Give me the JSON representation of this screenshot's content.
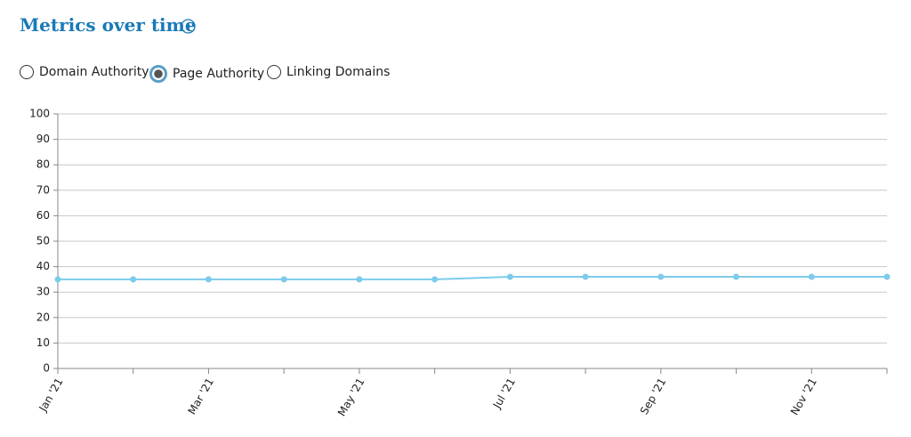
{
  "header": {
    "title": "Metrics over time"
  },
  "options": [
    {
      "label": "Domain Authority",
      "selected": false
    },
    {
      "label": "Page Authority",
      "selected": true
    },
    {
      "label": "Linking Domains",
      "selected": false
    }
  ],
  "chart_data": {
    "type": "line",
    "categories": [
      "Jan '21",
      null,
      "Mar '21",
      null,
      "May '21",
      null,
      "Jul '21",
      null,
      "Sep '21",
      null,
      "Nov '21",
      null
    ],
    "series": [
      {
        "name": "Page Authority",
        "color": "#7dcbea",
        "values": [
          35,
          35,
          35,
          35,
          35,
          35,
          36,
          36,
          36,
          36,
          36,
          36
        ]
      }
    ],
    "ylim": [
      0,
      100
    ],
    "yticks": [
      0,
      10,
      20,
      30,
      40,
      50,
      60,
      70,
      80,
      90,
      100
    ],
    "grid": true
  }
}
